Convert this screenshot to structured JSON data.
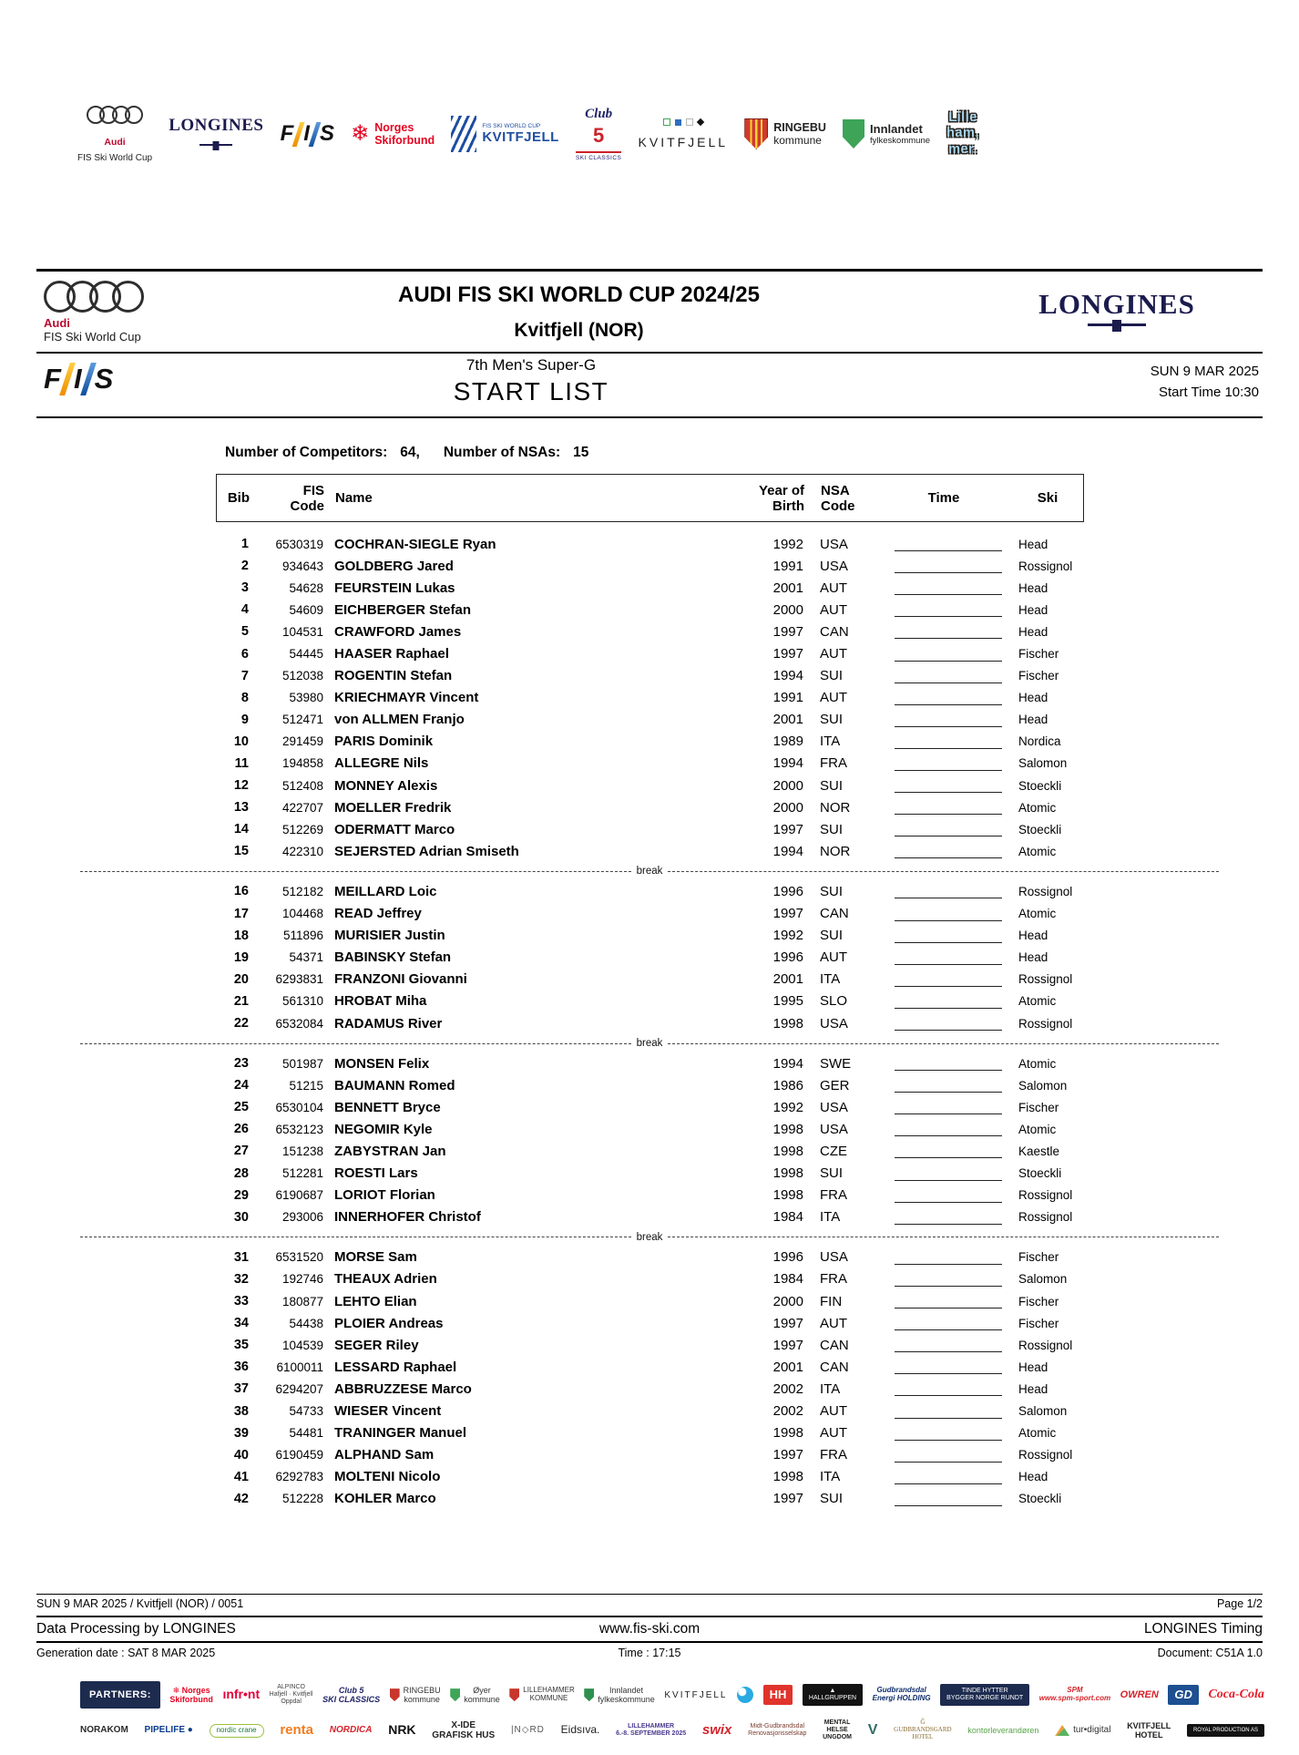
{
  "colors": {
    "audi_red": "#bb0a30",
    "longines_navy": "#1b1b4e",
    "fis_blue": "#1f4ea1",
    "club5_red": "#cc2229"
  },
  "top_logos": [
    {
      "id": "audi",
      "name": "audi-fis-ski-world-cup-logo",
      "line1": "Audi",
      "line2": "FIS Ski World Cup"
    },
    {
      "id": "longines",
      "name": "longines-logo",
      "text": "LONGINES"
    },
    {
      "id": "fis",
      "name": "fis-logo",
      "letters": "FIS"
    },
    {
      "id": "norges",
      "name": "norges-skiforbund-logo",
      "glyph": "❄",
      "line1": "Norges",
      "line2": "Skiforbund"
    },
    {
      "id": "kvitfjell-wc",
      "name": "fis-ski-world-cup-kvitfjell-logo",
      "line1": "FIS SKI WORLD CUP",
      "line2": "KVITFJELL"
    },
    {
      "id": "club5",
      "name": "club5-ski-classics-logo",
      "line1": "Club",
      "line2": "5",
      "line3": "SKI CLASSICS"
    },
    {
      "id": "kvitfjell",
      "name": "kvitfjell-resort-logo",
      "line2": "KVITFJELL"
    },
    {
      "id": "ringebu",
      "name": "ringebu-kommune-logo",
      "line1": "RINGEBU",
      "line2": "kommune"
    },
    {
      "id": "innlandet",
      "name": "innlandet-fylkeskommune-logo",
      "line1": "Innlandet",
      "line2": "fylkeskommune"
    },
    {
      "id": "lillehammer",
      "name": "lillehammer-logo",
      "line1": "Lille",
      "line2": "ham,",
      "line3": "mer."
    }
  ],
  "header": {
    "audi_line1": "Audi",
    "audi_line2": "FIS Ski World Cup",
    "title": "AUDI FIS SKI WORLD CUP 2024/25",
    "location": "Kvitfjell (NOR)",
    "longines": "LONGINES",
    "fis_text": "FIS",
    "race": "7th Men's Super-G",
    "list_title": "START LIST",
    "date": "SUN 9 MAR 2025",
    "start_time": "Start Time 10:30"
  },
  "competitors": {
    "label1": "Number of Competitors:",
    "value1": "64,",
    "label2": "Number of NSAs:",
    "value2": "15"
  },
  "table": {
    "headers": {
      "bib": "Bib",
      "fis1": "FIS",
      "fis2": "Code",
      "name": "Name",
      "year1": "Year of",
      "year2": "Birth",
      "nsa1": "NSA",
      "nsa2": "Code",
      "time": "Time",
      "ski": "Ski"
    },
    "break_label": "break",
    "groups": [
      [
        [
          "1",
          "6530319",
          "COCHRAN-SIEGLE Ryan",
          "1992",
          "USA",
          "Head"
        ],
        [
          "2",
          "934643",
          "GOLDBERG Jared",
          "1991",
          "USA",
          "Rossignol"
        ],
        [
          "3",
          "54628",
          "FEURSTEIN Lukas",
          "2001",
          "AUT",
          "Head"
        ],
        [
          "4",
          "54609",
          "EICHBERGER Stefan",
          "2000",
          "AUT",
          "Head"
        ],
        [
          "5",
          "104531",
          "CRAWFORD James",
          "1997",
          "CAN",
          "Head"
        ],
        [
          "6",
          "54445",
          "HAASER Raphael",
          "1997",
          "AUT",
          "Fischer"
        ],
        [
          "7",
          "512038",
          "ROGENTIN Stefan",
          "1994",
          "SUI",
          "Fischer"
        ],
        [
          "8",
          "53980",
          "KRIECHMAYR Vincent",
          "1991",
          "AUT",
          "Head"
        ],
        [
          "9",
          "512471",
          "von ALLMEN Franjo",
          "2001",
          "SUI",
          "Head"
        ],
        [
          "10",
          "291459",
          "PARIS Dominik",
          "1989",
          "ITA",
          "Nordica"
        ],
        [
          "11",
          "194858",
          "ALLEGRE Nils",
          "1994",
          "FRA",
          "Salomon"
        ],
        [
          "12",
          "512408",
          "MONNEY Alexis",
          "2000",
          "SUI",
          "Stoeckli"
        ],
        [
          "13",
          "422707",
          "MOELLER Fredrik",
          "2000",
          "NOR",
          "Atomic"
        ],
        [
          "14",
          "512269",
          "ODERMATT Marco",
          "1997",
          "SUI",
          "Stoeckli"
        ],
        [
          "15",
          "422310",
          "SEJERSTED Adrian Smiseth",
          "1994",
          "NOR",
          "Atomic"
        ]
      ],
      [
        [
          "16",
          "512182",
          "MEILLARD Loic",
          "1996",
          "SUI",
          "Rossignol"
        ],
        [
          "17",
          "104468",
          "READ Jeffrey",
          "1997",
          "CAN",
          "Atomic"
        ],
        [
          "18",
          "511896",
          "MURISIER Justin",
          "1992",
          "SUI",
          "Head"
        ],
        [
          "19",
          "54371",
          "BABINSKY Stefan",
          "1996",
          "AUT",
          "Head"
        ],
        [
          "20",
          "6293831",
          "FRANZONI Giovanni",
          "2001",
          "ITA",
          "Rossignol"
        ],
        [
          "21",
          "561310",
          "HROBAT Miha",
          "1995",
          "SLO",
          "Atomic"
        ],
        [
          "22",
          "6532084",
          "RADAMUS River",
          "1998",
          "USA",
          "Rossignol"
        ]
      ],
      [
        [
          "23",
          "501987",
          "MONSEN Felix",
          "1994",
          "SWE",
          "Atomic"
        ],
        [
          "24",
          "51215",
          "BAUMANN Romed",
          "1986",
          "GER",
          "Salomon"
        ],
        [
          "25",
          "6530104",
          "BENNETT Bryce",
          "1992",
          "USA",
          "Fischer"
        ],
        [
          "26",
          "6532123",
          "NEGOMIR Kyle",
          "1998",
          "USA",
          "Atomic"
        ],
        [
          "27",
          "151238",
          "ZABYSTRAN Jan",
          "1998",
          "CZE",
          "Kaestle"
        ],
        [
          "28",
          "512281",
          "ROESTI Lars",
          "1998",
          "SUI",
          "Stoeckli"
        ],
        [
          "29",
          "6190687",
          "LORIOT Florian",
          "1998",
          "FRA",
          "Rossignol"
        ],
        [
          "30",
          "293006",
          "INNERHOFER Christof",
          "1984",
          "ITA",
          "Rossignol"
        ]
      ],
      [
        [
          "31",
          "6531520",
          "MORSE Sam",
          "1996",
          "USA",
          "Fischer"
        ],
        [
          "32",
          "192746",
          "THEAUX Adrien",
          "1984",
          "FRA",
          "Salomon"
        ],
        [
          "33",
          "180877",
          "LEHTO Elian",
          "2000",
          "FIN",
          "Fischer"
        ],
        [
          "34",
          "54438",
          "PLOIER Andreas",
          "1997",
          "AUT",
          "Fischer"
        ],
        [
          "35",
          "104539",
          "SEGER Riley",
          "1997",
          "CAN",
          "Rossignol"
        ],
        [
          "36",
          "6100011",
          "LESSARD Raphael",
          "2001",
          "CAN",
          "Head"
        ],
        [
          "37",
          "6294207",
          "ABBRUZZESE Marco",
          "2002",
          "ITA",
          "Head"
        ],
        [
          "38",
          "54733",
          "WIESER Vincent",
          "2002",
          "AUT",
          "Salomon"
        ],
        [
          "39",
          "54481",
          "TRANINGER Manuel",
          "1998",
          "AUT",
          "Atomic"
        ],
        [
          "40",
          "6190459",
          "ALPHAND Sam",
          "1997",
          "FRA",
          "Rossignol"
        ],
        [
          "41",
          "6292783",
          "MOLTENI Nicolo",
          "1998",
          "ITA",
          "Head"
        ],
        [
          "42",
          "512228",
          "KOHLER Marco",
          "1997",
          "SUI",
          "Stoeckli"
        ]
      ]
    ]
  },
  "footer": {
    "line1_left": "SUN 9 MAR 2025 / Kvitfjell (NOR) / 0051",
    "line1_right": "Page 1/2",
    "line2_left": "Data Processing by LONGINES",
    "line2_center": "www.fis-ski.com",
    "line2_right": "LONGINES Timing",
    "line3_left": "Generation date : SAT 8 MAR 2025",
    "line3_center": "Time : 17:15",
    "line3_right": "Document: C51A 1.0"
  },
  "partners": {
    "label": "PARTNERS:",
    "row1": [
      {
        "l": [
          "❄ Norges",
          "Skiforbund"
        ],
        "c": "#e40521",
        "s": 9,
        "b": 1
      },
      {
        "t": "ınfr•nt",
        "c": "#e4003a",
        "s": 14,
        "b": 1
      },
      {
        "l": [
          "ALPINCO",
          "Hafjell · Kvitfjell",
          "Oppdal"
        ],
        "c": "#444",
        "s": 7
      },
      {
        "l": [
          "Club 5",
          "SKI CLASSICS"
        ],
        "c": "#20246a",
        "s": 9,
        "b": 1,
        "i": 1
      },
      {
        "l": [
          "RINGEBU",
          "kommune"
        ],
        "c": "#333",
        "s": 9,
        "icon": "shield-red"
      },
      {
        "l": [
          "Øyer",
          "kommune"
        ],
        "c": "#333",
        "s": 9,
        "icon": "shield-green"
      },
      {
        "l": [
          "LILLEHAMMER",
          "KOMMUNE"
        ],
        "c": "#333",
        "s": 8,
        "icon": "shield-red"
      },
      {
        "l": [
          "Innlandet",
          "fylkeskommune"
        ],
        "c": "#333",
        "s": 9,
        "icon": "shield-green2"
      },
      {
        "t": "KVITFJELL",
        "c": "#1d1d1b",
        "s": 10,
        "sp": 2
      },
      {
        "icon": "telenor"
      },
      {
        "t": "HH",
        "box": "red",
        "s": 13,
        "b": 1
      },
      {
        "l": [
          "▲",
          "HALLGRUPPEN"
        ],
        "box": "black",
        "s": 7
      },
      {
        "l": [
          "Gudbrandsdal",
          "Energi HOLDING"
        ],
        "c": "#0d2d6b",
        "s": 8,
        "b": 1,
        "i": 1
      },
      {
        "l": [
          "TINDE HYTTER",
          "BYGGER NORGE RUNDT"
        ],
        "box": "navy",
        "s": 7
      },
      {
        "l": [
          "SPM",
          "www.spm-sport.com"
        ],
        "c": "#d5232a",
        "s": 8,
        "b": 1,
        "i": 1
      },
      {
        "t": "OWREN",
        "c": "#d5232a",
        "s": 11,
        "b": 1,
        "i": 1
      },
      {
        "t": "GD",
        "box": "blue",
        "s": 13,
        "b": 1,
        "i": 1
      },
      {
        "t": "Coca-Cola",
        "c": "#e61a27",
        "s": 14,
        "b": 1,
        "i": 1,
        "f": "serif"
      }
    ],
    "row2": [
      {
        "t": "NORAKOM",
        "c": "#2b2b2b",
        "s": 10,
        "b": 1
      },
      {
        "t": "PIPELIFE ●",
        "c": "#0b3e8d",
        "s": 10,
        "b": 1
      },
      {
        "t": "nordic crane",
        "c": "#1a7a3a",
        "s": 8,
        "pill": 1
      },
      {
        "t": "renta",
        "c": "#f07d21",
        "s": 15,
        "b": 1
      },
      {
        "t": "NORDICA",
        "c": "#d5232a",
        "s": 10,
        "b": 1,
        "i": 1
      },
      {
        "t": "NRK",
        "c": "#111",
        "s": 14,
        "b": 1
      },
      {
        "l": [
          "X-IDE",
          "GRAFISK HUS"
        ],
        "c": "#222",
        "s": 10,
        "b": 1
      },
      {
        "t": "|N◇RD",
        "c": "#555",
        "s": 10,
        "sp": 1
      },
      {
        "t": "Eidsıva.",
        "c": "#222",
        "s": 12
      },
      {
        "l": [
          "LILLEHAMMER",
          "6.-8. SEPTEMBER 2025"
        ],
        "c": "#4b3a8f",
        "s": 7,
        "b": 1
      },
      {
        "t": "swix",
        "c": "#d5232a",
        "s": 15,
        "b": 1,
        "i": 1
      },
      {
        "l": [
          "Midt-Gudbrandsdal",
          "Renovasjonsselskap"
        ],
        "c": "#7a3b2e",
        "s": 7
      },
      {
        "l": [
          "MENTAL",
          "HELSE",
          "UNGDOM"
        ],
        "c": "#1d1d1b",
        "s": 7,
        "b": 1
      },
      {
        "t": "V",
        "c": "#2f6f63",
        "s": 16,
        "b": 1
      },
      {
        "l": [
          "Ĝ",
          "GUDBRANDSGARD",
          "HOTEL"
        ],
        "c": "#8a6d2f",
        "s": 7,
        "f": "serif"
      },
      {
        "t": "kontorleverandøren",
        "c": "#58a549",
        "s": 9
      },
      {
        "t": "tur•digital",
        "c": "#333",
        "s": 10,
        "icon": "tur"
      },
      {
        "l": [
          "KVITFJELL",
          "HOTEL"
        ],
        "c": "#1d1d1b",
        "s": 9,
        "b": 1
      },
      {
        "t": "ROYAL PRODUCTION AS",
        "box": "black",
        "s": 6
      }
    ]
  }
}
